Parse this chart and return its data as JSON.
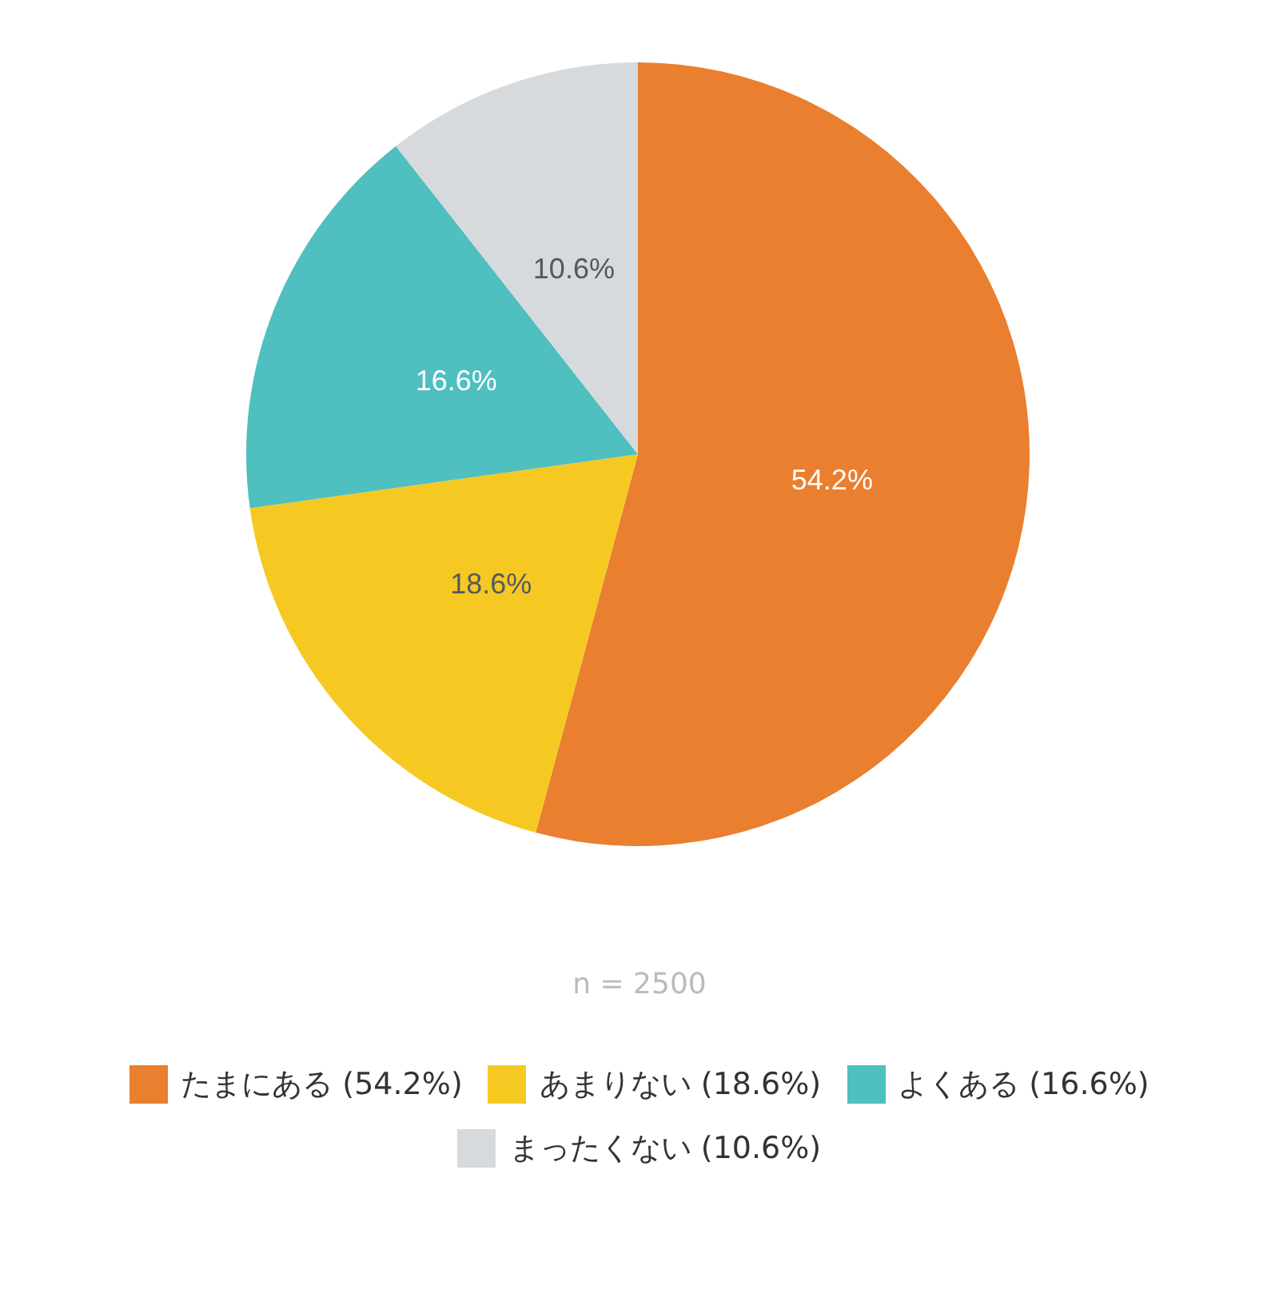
{
  "chart_data": {
    "type": "pie",
    "categories": [
      "たまにある (54.2%)",
      "あまりない (18.6%)",
      "よくある (16.6%)",
      "まったくない (10.6%)"
    ],
    "values": [
      54.2,
      18.6,
      16.6,
      10.6
    ],
    "colors": [
      "#e97f2f",
      "#f5c922",
      "#4fbfbf",
      "#d7dadd"
    ],
    "value_labels": [
      "54.2%",
      "18.6%",
      "16.6%",
      "10.6%"
    ],
    "annotations": [
      "n = 2500"
    ],
    "legend": "bottom"
  }
}
